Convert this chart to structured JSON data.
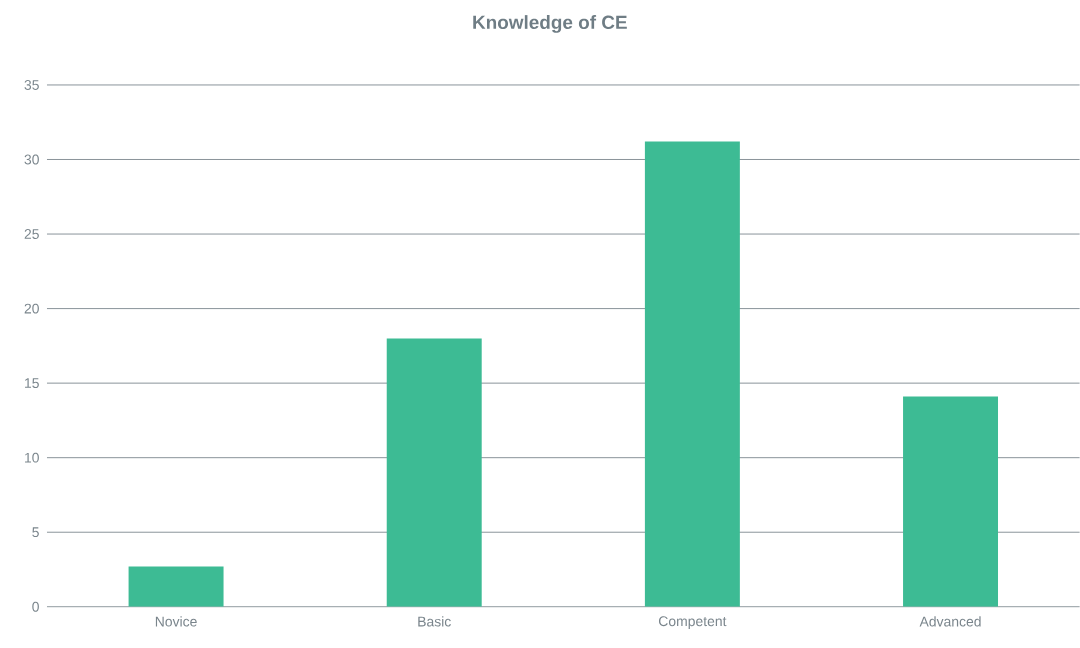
{
  "chart_data": {
    "type": "bar",
    "title": "Knowledge of CE",
    "categories": [
      "Novice",
      "Basic",
      "Competent",
      "Advanced"
    ],
    "values": [
      2.7,
      18,
      31.2,
      14.1
    ],
    "color": "#3dbb94",
    "ylim": [
      0,
      35
    ],
    "yticks": [
      0,
      5,
      10,
      15,
      20,
      25,
      30,
      35
    ],
    "grid": "y"
  }
}
